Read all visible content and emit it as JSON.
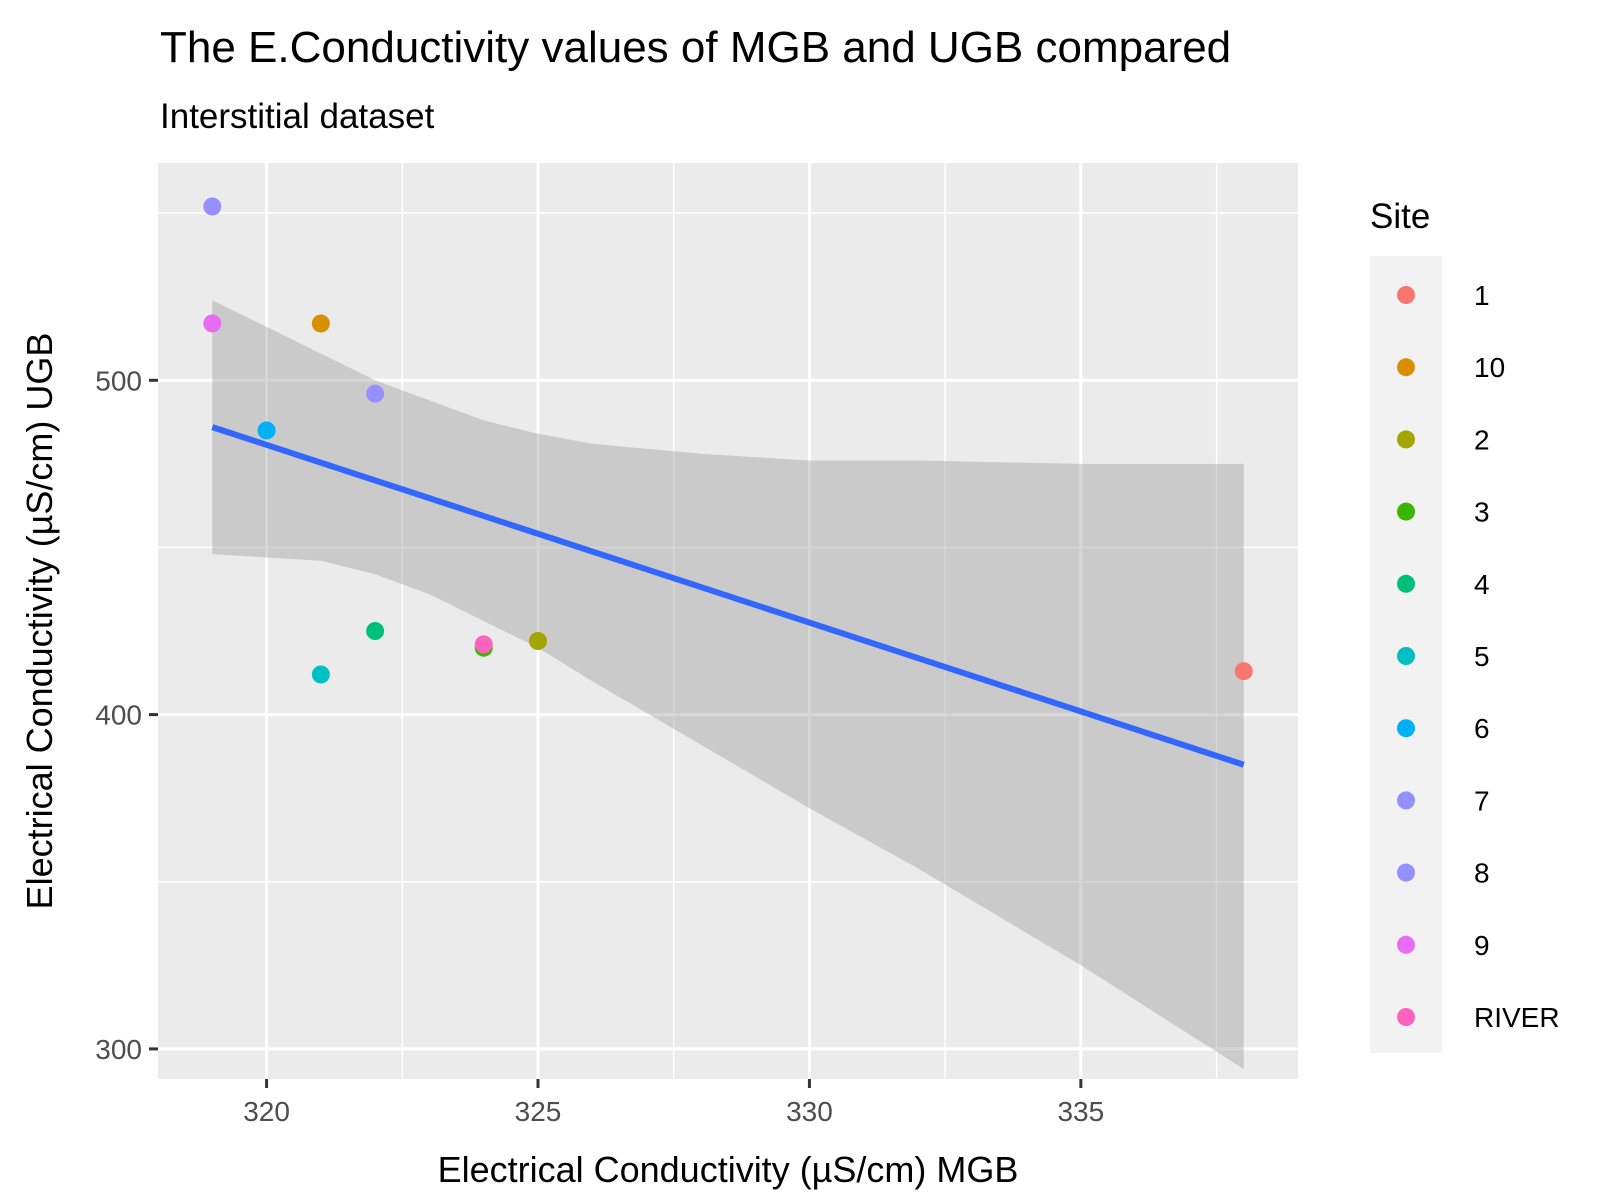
{
  "chart_data": {
    "type": "scatter",
    "title": "The E.Conductivity values of MGB and UGB compared",
    "subtitle": "Interstitial dataset",
    "xlabel": "Electrical Conductivity (µS/cm) MGB",
    "ylabel": "Electrical Conductivity (µS/cm) UGB",
    "xlim": [
      318,
      339
    ],
    "ylim": [
      291,
      565
    ],
    "x_ticks": [
      320,
      325,
      330,
      335
    ],
    "y_ticks": [
      300,
      400,
      500
    ],
    "x_tick_labels": [
      "320",
      "325",
      "330",
      "335"
    ],
    "y_tick_labels": [
      "300",
      "400",
      "500"
    ],
    "grid": true,
    "legend": {
      "title": "Site",
      "position": "right",
      "entries": [
        "1",
        "10",
        "2",
        "3",
        "4",
        "5",
        "6",
        "7",
        "8",
        "9",
        "RIVER"
      ]
    },
    "colors": {
      "1": "#F8766D",
      "10": "#D89000",
      "2": "#A3A500",
      "3": "#39B600",
      "4": "#00BF7D",
      "5": "#00BFC4",
      "6": "#00B0F6",
      "7": "#9590FF",
      "8": "#9590FF",
      "9": "#E76BF3",
      "RIVER": "#FF62BC"
    },
    "points": [
      {
        "site": "8",
        "x": 319,
        "y": 552
      },
      {
        "site": "9",
        "x": 319,
        "y": 517
      },
      {
        "site": "10",
        "x": 321,
        "y": 517
      },
      {
        "site": "7",
        "x": 322,
        "y": 496
      },
      {
        "site": "6",
        "x": 320,
        "y": 485
      },
      {
        "site": "4",
        "x": 322,
        "y": 425
      },
      {
        "site": "5",
        "x": 321,
        "y": 412
      },
      {
        "site": "3",
        "x": 324,
        "y": 420
      },
      {
        "site": "RIVER",
        "x": 324,
        "y": 421
      },
      {
        "site": "2",
        "x": 325,
        "y": 422
      },
      {
        "site": "1",
        "x": 338,
        "y": 413
      }
    ],
    "regression": {
      "color": "#3366FF",
      "band_color": "#999999",
      "start": {
        "x": 319,
        "y": 486
      },
      "end": {
        "x": 338,
        "y": 385
      },
      "ci_upper": [
        {
          "x": 319,
          "y": 524
        },
        {
          "x": 320,
          "y": 516
        },
        {
          "x": 321,
          "y": 508
        },
        {
          "x": 322,
          "y": 500
        },
        {
          "x": 323,
          "y": 494
        },
        {
          "x": 324,
          "y": 488
        },
        {
          "x": 325,
          "y": 484
        },
        {
          "x": 326,
          "y": 481
        },
        {
          "x": 328,
          "y": 478
        },
        {
          "x": 330,
          "y": 476
        },
        {
          "x": 332,
          "y": 476
        },
        {
          "x": 335,
          "y": 475
        },
        {
          "x": 338,
          "y": 475
        }
      ],
      "ci_lower": [
        {
          "x": 319,
          "y": 448
        },
        {
          "x": 320,
          "y": 447
        },
        {
          "x": 321,
          "y": 446
        },
        {
          "x": 322,
          "y": 442
        },
        {
          "x": 323,
          "y": 436
        },
        {
          "x": 324,
          "y": 428
        },
        {
          "x": 325,
          "y": 420
        },
        {
          "x": 326,
          "y": 410
        },
        {
          "x": 328,
          "y": 391
        },
        {
          "x": 330,
          "y": 372
        },
        {
          "x": 332,
          "y": 354
        },
        {
          "x": 335,
          "y": 325
        },
        {
          "x": 338,
          "y": 294
        }
      ]
    }
  }
}
